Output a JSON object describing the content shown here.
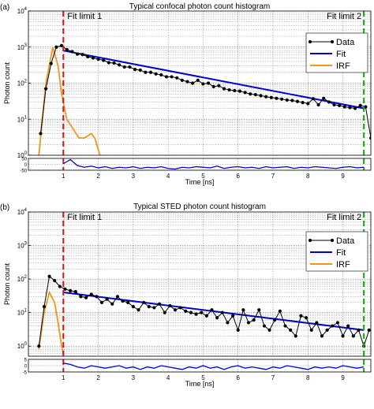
{
  "chart_data": [
    {
      "type": "line",
      "panel_label": "(a)",
      "title": "Typical confocal photon count histogram",
      "xlabel": "Time [ns]",
      "ylabel": "Photon count",
      "yscale": "log",
      "xlim": [
        0,
        9.8
      ],
      "ylim": [
        1,
        10000
      ],
      "x_ticks": [
        "1",
        "2",
        "3",
        "4",
        "5",
        "6",
        "7",
        "8",
        "9"
      ],
      "y_ticks": [
        "10^0",
        "10^1",
        "10^2",
        "10^3",
        "10^4"
      ],
      "grid": true,
      "legend": {
        "position": "top-right",
        "entries": [
          "Data",
          "Fit",
          "IRF"
        ]
      },
      "colors": {
        "data": "#000000",
        "fit": "#0000cc",
        "irf": "#f0961e",
        "fit_limit_1": "#e01010",
        "fit_limit_2": "#10aa10"
      },
      "annotations": [
        {
          "text": "Fit limit 1",
          "x": 1.0
        },
        {
          "text": "Fit limit 2",
          "x": 9.6
        }
      ],
      "series": [
        {
          "name": "Data",
          "x": [
            0.35,
            0.5,
            0.65,
            0.8,
            0.95,
            1.1,
            1.25,
            1.4,
            1.55,
            1.7,
            1.85,
            2.0,
            2.15,
            2.3,
            2.45,
            2.6,
            2.75,
            2.9,
            3.05,
            3.2,
            3.35,
            3.5,
            3.65,
            3.8,
            3.95,
            4.1,
            4.25,
            4.4,
            4.55,
            4.7,
            4.85,
            5.0,
            5.15,
            5.3,
            5.45,
            5.6,
            5.75,
            5.9,
            6.05,
            6.2,
            6.35,
            6.5,
            6.65,
            6.8,
            6.95,
            7.1,
            7.25,
            7.4,
            7.55,
            7.7,
            7.85,
            8.0,
            8.15,
            8.3,
            8.45,
            8.6,
            8.75,
            8.9,
            9.05,
            9.2,
            9.35,
            9.5,
            9.65,
            9.8
          ],
          "y": [
            4,
            70,
            350,
            1000,
            1100,
            850,
            750,
            640,
            620,
            540,
            500,
            460,
            430,
            370,
            360,
            320,
            280,
            280,
            240,
            230,
            200,
            200,
            180,
            170,
            150,
            150,
            140,
            120,
            110,
            100,
            120,
            95,
            100,
            80,
            85,
            70,
            65,
            62,
            60,
            55,
            50,
            48,
            45,
            42,
            40,
            38,
            36,
            34,
            33,
            31,
            29,
            27,
            37,
            25,
            38,
            30,
            25,
            24,
            22,
            21,
            20,
            24,
            22,
            3
          ]
        },
        {
          "name": "Fit",
          "x": [
            1.0,
            9.6
          ],
          "y": [
            800,
            20
          ]
        },
        {
          "name": "IRF",
          "x": [
            0.3,
            0.5,
            0.7,
            0.85,
            0.95,
            1.1,
            1.3,
            1.45,
            1.6,
            1.8,
            1.9,
            2.05
          ],
          "y": [
            1,
            100,
            1000,
            300,
            50,
            10,
            5,
            3,
            3,
            4,
            3,
            1
          ]
        }
      ],
      "residuals": {
        "ylim": [
          -50,
          50
        ],
        "y_ticks": [
          "50",
          "0",
          "-50"
        ],
        "x": [
          1.0,
          1.2,
          1.4,
          1.6,
          1.8,
          2.0,
          2.2,
          2.4,
          2.6,
          2.8,
          3.0,
          3.2,
          3.4,
          3.6,
          3.8,
          4.0,
          4.2,
          4.4,
          4.6,
          4.8,
          5.0,
          5.2,
          5.4,
          5.6,
          5.8,
          6.0,
          6.2,
          6.4,
          6.6,
          6.8,
          7.0,
          7.2,
          7.4,
          7.6,
          7.8,
          8.0,
          8.2,
          8.4,
          8.6,
          8.8,
          9.0,
          9.2,
          9.4,
          9.6
        ],
        "y": [
          5,
          40,
          -10,
          -25,
          -15,
          -30,
          -20,
          -35,
          -25,
          -30,
          -20,
          -35,
          -25,
          -30,
          -20,
          -35,
          -40,
          -25,
          -30,
          -20,
          -25,
          -30,
          -15,
          -35,
          -25,
          -20,
          -30,
          -25,
          -35,
          -20,
          -30,
          -25,
          -20,
          -35,
          -25,
          -30,
          -20,
          -25,
          -30,
          -35,
          -25,
          -20,
          -30,
          -25
        ]
      }
    },
    {
      "type": "line",
      "panel_label": "(b)",
      "title": "Typical STED photon count histogram",
      "xlabel": "Time [ns]",
      "ylabel": "Photon count",
      "yscale": "log",
      "xlim": [
        0,
        9.8
      ],
      "ylim": [
        0.5,
        10000
      ],
      "x_ticks": [
        "1",
        "2",
        "3",
        "4",
        "5",
        "6",
        "7",
        "8",
        "9"
      ],
      "y_ticks": [
        "10^0",
        "10^1",
        "10^2",
        "10^3",
        "10^4"
      ],
      "grid": true,
      "legend": {
        "position": "right",
        "entries": [
          "Data",
          "Fit",
          "IRF"
        ]
      },
      "colors": {
        "data": "#000000",
        "fit": "#0000cc",
        "irf": "#f0961e",
        "fit_limit_1": "#e01010",
        "fit_limit_2": "#10aa10"
      },
      "annotations": [
        {
          "text": "Fit limit 1",
          "x": 1.0
        },
        {
          "text": "Fit limit 2",
          "x": 9.6
        }
      ],
      "series": [
        {
          "name": "Data",
          "x": [
            0.3,
            0.45,
            0.6,
            0.75,
            0.9,
            1.05,
            1.2,
            1.35,
            1.5,
            1.65,
            1.8,
            1.95,
            2.1,
            2.25,
            2.4,
            2.55,
            2.7,
            2.85,
            3.0,
            3.15,
            3.3,
            3.45,
            3.6,
            3.75,
            3.9,
            4.05,
            4.2,
            4.35,
            4.5,
            4.65,
            4.8,
            4.95,
            5.1,
            5.25,
            5.4,
            5.55,
            5.7,
            5.85,
            6.0,
            6.15,
            6.3,
            6.45,
            6.6,
            6.75,
            6.9,
            7.05,
            7.2,
            7.35,
            7.5,
            7.65,
            7.8,
            7.95,
            8.1,
            8.25,
            8.4,
            8.55,
            8.7,
            8.85,
            9.0,
            9.15,
            9.3,
            9.45,
            9.6,
            9.75
          ],
          "y": [
            1,
            15,
            120,
            90,
            60,
            50,
            45,
            42,
            30,
            28,
            35,
            30,
            20,
            25,
            18,
            30,
            22,
            20,
            15,
            12,
            20,
            15,
            14,
            18,
            10,
            16,
            12,
            14,
            11,
            10,
            9,
            10,
            8,
            12,
            7,
            10,
            5,
            8,
            3,
            12,
            5,
            6,
            12,
            4,
            3,
            6,
            11,
            4,
            3,
            2,
            8,
            7,
            3,
            5,
            2,
            3,
            4,
            5,
            2,
            4,
            2,
            3,
            1,
            3
          ]
        },
        {
          "name": "Fit",
          "x": [
            1.0,
            9.6
          ],
          "y": [
            40,
            3
          ]
        },
        {
          "name": "IRF",
          "x": [
            0.3,
            0.45,
            0.6,
            0.75,
            0.85,
            0.95,
            1.0
          ],
          "y": [
            0.8,
            10,
            40,
            20,
            5,
            1,
            0.6
          ]
        }
      ],
      "residuals": {
        "ylim": [
          -5,
          5
        ],
        "y_ticks": [
          "5",
          "0",
          "-5"
        ],
        "x": [
          1.0,
          1.2,
          1.4,
          1.6,
          1.8,
          2.0,
          2.2,
          2.4,
          2.6,
          2.8,
          3.0,
          3.2,
          3.4,
          3.6,
          3.8,
          4.0,
          4.2,
          4.4,
          4.6,
          4.8,
          5.0,
          5.2,
          5.4,
          5.6,
          5.8,
          6.0,
          6.2,
          6.4,
          6.6,
          6.8,
          7.0,
          7.2,
          7.4,
          7.6,
          7.8,
          8.0,
          8.2,
          8.4,
          8.6,
          8.8,
          9.0,
          9.2,
          9.4,
          9.6
        ],
        "y": [
          2,
          1,
          -1,
          -2,
          0,
          -1,
          -2,
          -1,
          0,
          -2,
          -1,
          -3,
          -1,
          -2,
          0,
          -1,
          -2,
          -3,
          -1,
          -2,
          0,
          -2,
          -1,
          -3,
          -1,
          0,
          -2,
          -1,
          -2,
          -3,
          -1,
          -2,
          0,
          -1,
          -2,
          -3,
          -1,
          -2,
          -1,
          -2,
          0,
          -1,
          -2,
          -1
        ]
      }
    }
  ]
}
